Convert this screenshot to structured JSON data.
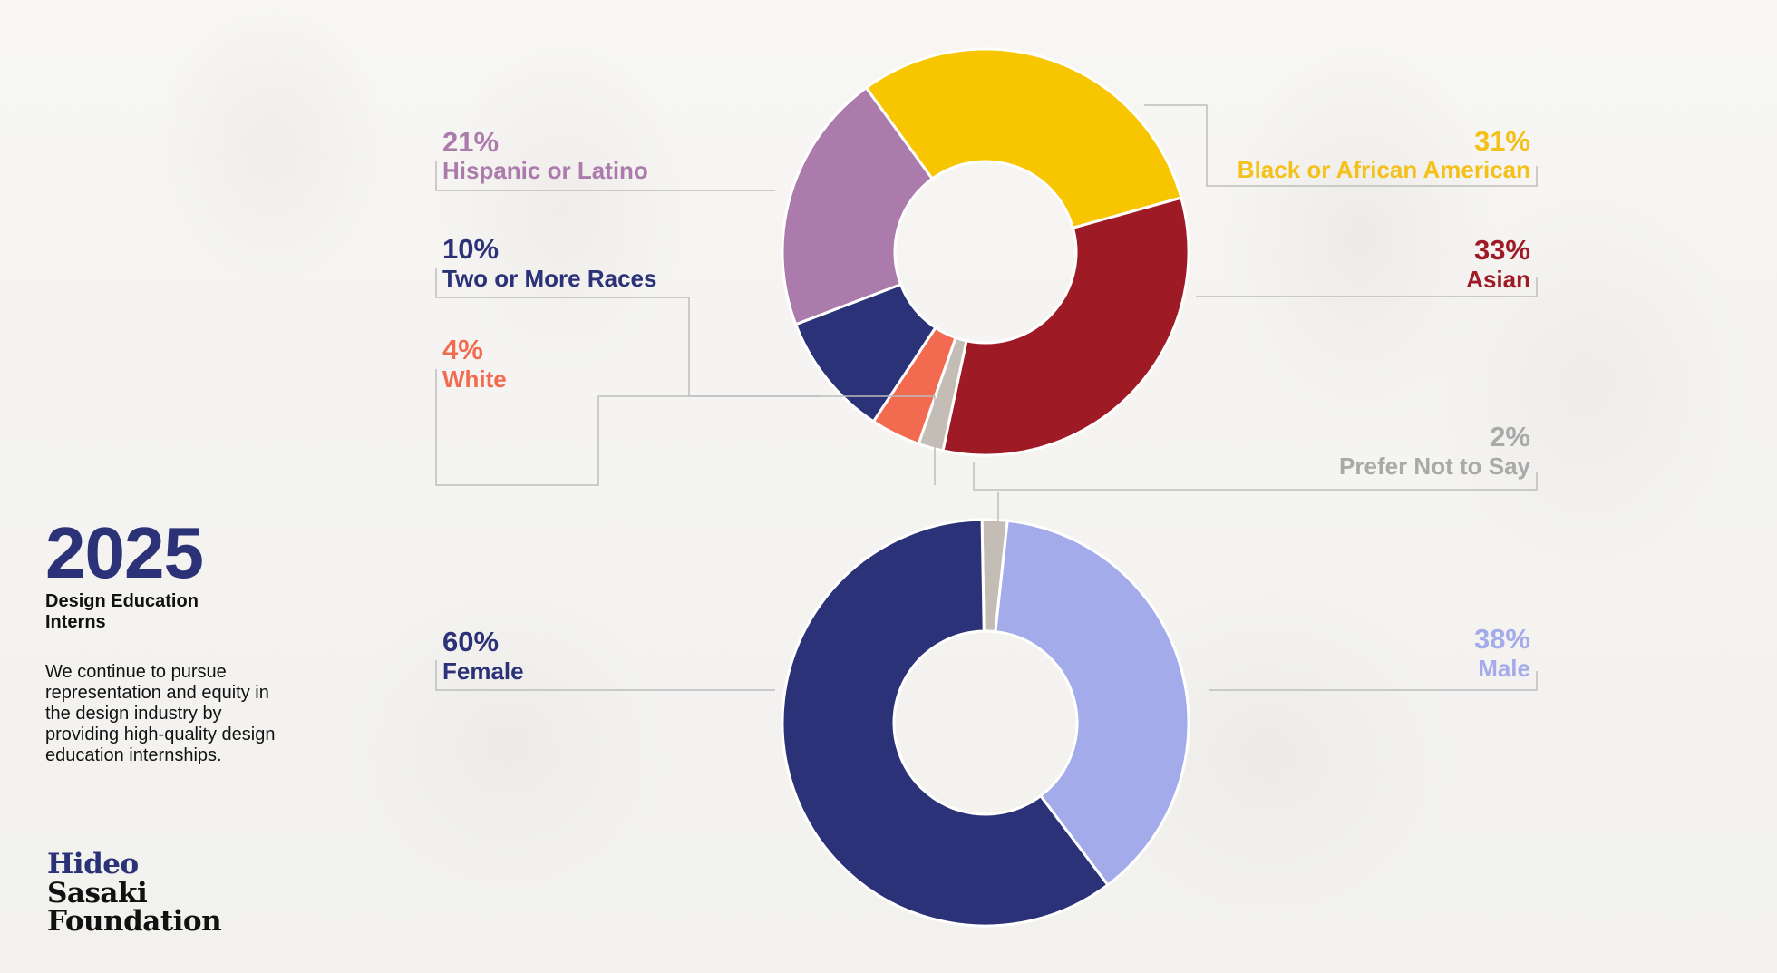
{
  "header": {
    "year": "2025",
    "subtitle": "Design Education Interns",
    "description": "We continue to pursue representation and equity in the design industry by providing high-quality design education internships."
  },
  "logo": {
    "line1": "Hideo",
    "line2": "Sasaki",
    "line3": "Foundation"
  },
  "colors": {
    "brand_navy": "#2b3277",
    "text_dark": "#111111",
    "leader_line": "#bdbdbd"
  },
  "chart_data": [
    {
      "type": "pie",
      "donut": true,
      "title": "",
      "slices": [
        {
          "label": "Black or African American",
          "pct_text": "31%",
          "value": 31,
          "color": "#f8c600",
          "pct_color": "#f3c11a"
        },
        {
          "label": "Asian",
          "pct_text": "33%",
          "value": 33,
          "color": "#9e1b25",
          "pct_color": "#9e1b25"
        },
        {
          "label": "Prefer Not to Say",
          "pct_text": "2%",
          "value": 2,
          "color": "#c4bdb6",
          "pct_color": "#a9a9a9"
        },
        {
          "label": "White",
          "pct_text": "4%",
          "value": 4,
          "color": "#f26b50",
          "pct_color": "#f26b50"
        },
        {
          "label": "Two or More Races",
          "pct_text": "10%",
          "value": 10,
          "color": "#2b3277",
          "pct_color": "#2b3277"
        },
        {
          "label": "Hispanic or Latino",
          "pct_text": "21%",
          "value": 21,
          "color": "#ab7bac",
          "pct_color": "#ab7bac"
        }
      ]
    },
    {
      "type": "pie",
      "donut": true,
      "title": "",
      "slices": [
        {
          "label": "",
          "pct_text": "",
          "value": 2,
          "color": "#c4bdb6",
          "pct_color": "#a9a9a9"
        },
        {
          "label": "Male",
          "pct_text": "38%",
          "value": 38,
          "color": "#a3abea",
          "pct_color": "#a3abea"
        },
        {
          "label": "Female",
          "pct_text": "60%",
          "value": 60,
          "color": "#2b3277",
          "pct_color": "#2b3277"
        }
      ]
    }
  ]
}
